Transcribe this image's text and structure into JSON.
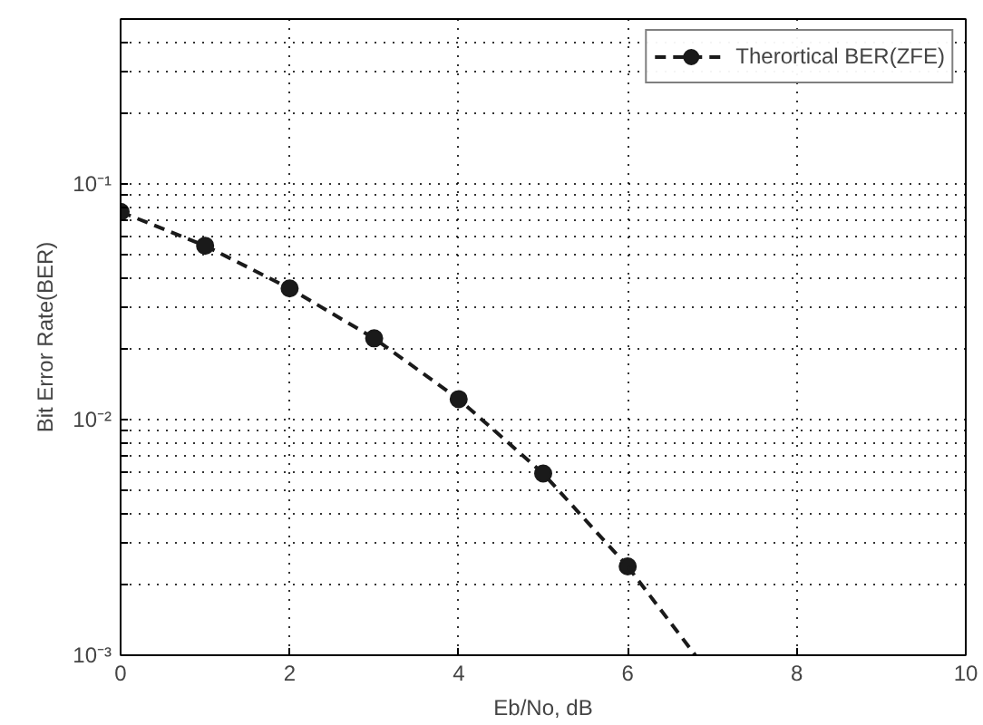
{
  "chart_data": {
    "type": "line",
    "xlabel": "Eb/No, dB",
    "ylabel": "Bit Error Rate(BER)",
    "series": [
      {
        "name": "Therortical BER(ZFE)",
        "color": "#1a1a1a",
        "x": [
          0,
          1,
          2,
          3,
          4,
          5,
          6
        ],
        "values": [
          0.076,
          0.0546,
          0.036,
          0.0221,
          0.0122,
          0.0059,
          0.00238
        ],
        "marker": "circle",
        "line_style": "dashed"
      },
      {
        "color": "#1a1a1a",
        "x": [
          6,
          6.8
        ],
        "values": [
          0.00238,
          0.001
        ],
        "marker": "none",
        "line_style": "dashed"
      }
    ],
    "log": "y",
    "xlim": [
      0,
      10
    ],
    "xticks": [
      0,
      2,
      4,
      6,
      8,
      10
    ],
    "ylim": [
      0.001,
      0.5
    ],
    "yticks": [
      {
        "value": 0.001,
        "label": "10⁻³"
      },
      {
        "value": 0.002,
        "label": null
      },
      {
        "value": 0.003,
        "label": null
      },
      {
        "value": 0.004,
        "label": null
      },
      {
        "value": 0.005,
        "label": null
      },
      {
        "value": 0.006,
        "label": null
      },
      {
        "value": 0.007,
        "label": null
      },
      {
        "value": 0.008,
        "label": null
      },
      {
        "value": 0.009,
        "label": null
      },
      {
        "value": 0.01,
        "label": "10⁻²"
      },
      {
        "value": 0.02,
        "label": null
      },
      {
        "value": 0.03,
        "label": null
      },
      {
        "value": 0.04,
        "label": null
      },
      {
        "value": 0.05,
        "label": null
      },
      {
        "value": 0.06,
        "label": null
      },
      {
        "value": 0.07,
        "label": null
      },
      {
        "value": 0.08,
        "label": null
      },
      {
        "value": 0.09,
        "label": null
      },
      {
        "value": 0.1,
        "label": "10⁻¹"
      },
      {
        "value": 0.2,
        "label": null
      },
      {
        "value": 0.3,
        "label": null
      },
      {
        "value": 0.4,
        "label": null
      },
      {
        "value": 0.5,
        "label": null
      }
    ],
    "grid": true,
    "legend": "top right"
  }
}
